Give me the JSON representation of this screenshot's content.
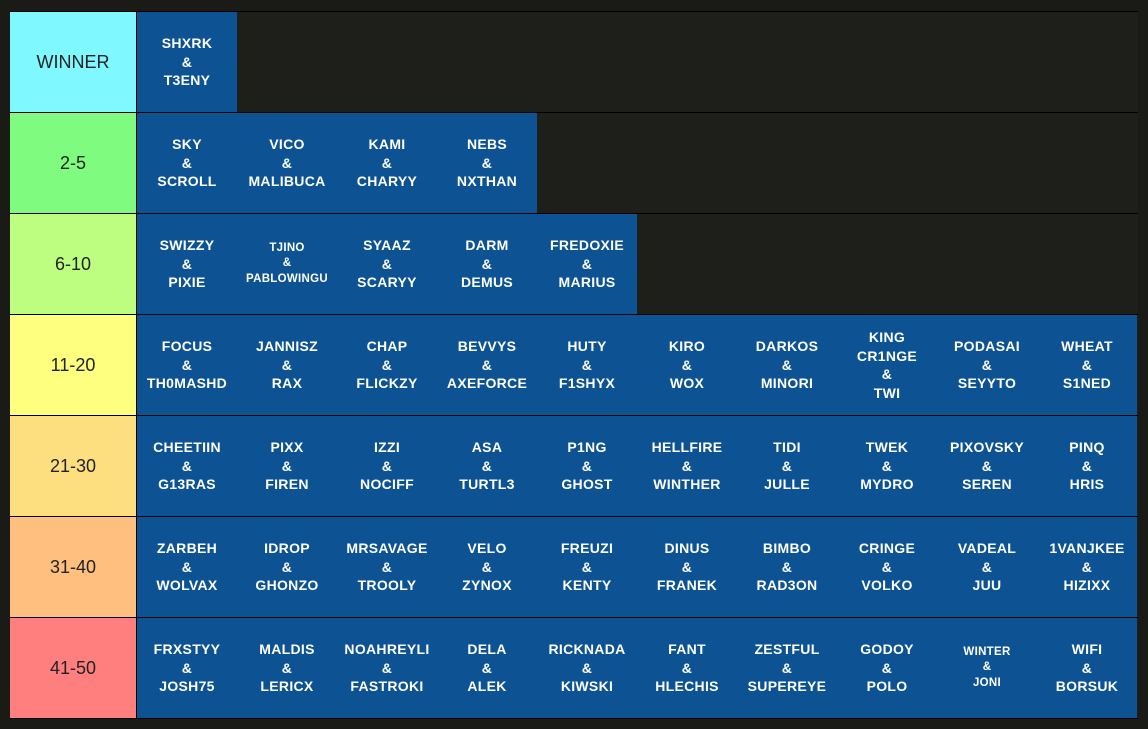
{
  "tiers": [
    {
      "label": "WINNER",
      "color": "#7ff9ff",
      "teams": [
        [
          "SHXRK",
          "&",
          "T3ENY"
        ]
      ]
    },
    {
      "label": "2-5",
      "color": "#7ffc7f",
      "teams": [
        [
          "SKY",
          "&",
          "SCROLL"
        ],
        [
          "VICO",
          "&",
          "MALIBUCA"
        ],
        [
          "KAMI",
          "&",
          "CHARYY"
        ],
        [
          "NEBS",
          "&",
          "NXTHAN"
        ]
      ]
    },
    {
      "label": "6-10",
      "color": "#bdfd7f",
      "teams": [
        [
          "SWIZZY",
          "&",
          "PIXIE"
        ],
        [
          "TJINO",
          "&",
          "PABLOWINGU"
        ],
        [
          "SYAAZ",
          "&",
          "SCARYY"
        ],
        [
          "DARM",
          "&",
          "DEMUS"
        ],
        [
          "FREDOXIE",
          "&",
          "MARIUS"
        ]
      ]
    },
    {
      "label": "11-20",
      "color": "#fefe7f",
      "teams": [
        [
          "FOCUS",
          "&",
          "TH0MASHD"
        ],
        [
          "JANNISZ",
          "&",
          "RAX"
        ],
        [
          "CHAP",
          "&",
          "FLICKZY"
        ],
        [
          "BEVVYS",
          "&",
          "AXEFORCE"
        ],
        [
          "HUTY",
          "&",
          "F1SHYX"
        ],
        [
          "KIRO",
          "&",
          "WOX"
        ],
        [
          "DARKOS",
          "&",
          "MINORI"
        ],
        [
          "KING",
          "CR1NGE",
          "&",
          "TWI"
        ],
        [
          "PODASAI",
          "&",
          "SEYYTO"
        ],
        [
          "WHEAT",
          "&",
          "S1NED"
        ]
      ]
    },
    {
      "label": "21-30",
      "color": "#fedf7f",
      "teams": [
        [
          "CHEETIIN",
          "&",
          "G13RAS"
        ],
        [
          "PIXX",
          "&",
          "FIREN"
        ],
        [
          "IZZI",
          "&",
          "NOCIFF"
        ],
        [
          "ASA",
          "&",
          "TURTL3"
        ],
        [
          "P1NG",
          "&",
          "GHOST"
        ],
        [
          "HELLFIRE",
          "&",
          "WINTHER"
        ],
        [
          "TIDI",
          "&",
          "JULLE"
        ],
        [
          "TWEK",
          "&",
          "MYDRO"
        ],
        [
          "PIXOVSKY",
          "&",
          "SEREN"
        ],
        [
          "PINQ",
          "&",
          "HRIS"
        ]
      ]
    },
    {
      "label": "31-40",
      "color": "#febf7f",
      "teams": [
        [
          "ZARBEH",
          "&",
          "WOLVAX"
        ],
        [
          "IDROP",
          "&",
          "GHONZO"
        ],
        [
          "MRSAVAGE",
          "&",
          "TROOLY"
        ],
        [
          "VELO",
          "&",
          "ZYNOX"
        ],
        [
          "FREUZI",
          "&",
          "KENTY"
        ],
        [
          "DINUS",
          "&",
          "FRANEK"
        ],
        [
          "BIMBO",
          "&",
          "RAD3ON"
        ],
        [
          "CRINGE",
          "&",
          "VOLKO"
        ],
        [
          "VADEAL",
          "&",
          "JUU"
        ],
        [
          "1VANJKEE",
          "&",
          "HIZIXX"
        ]
      ]
    },
    {
      "label": "41-50",
      "color": "#ff7f7f",
      "teams": [
        [
          "FRXSTYY",
          "&",
          "JOSH75"
        ],
        [
          "MALDIS",
          "&",
          "LERICX"
        ],
        [
          "NOAHREYLI",
          "&",
          "FASTROKI"
        ],
        [
          "DELA",
          "&",
          "ALEK"
        ],
        [
          "RICKNADA",
          "&",
          "KIWSKI"
        ],
        [
          "FANT",
          "&",
          "HLECHIS"
        ],
        [
          "ZESTFUL",
          "&",
          "SUPEREYE"
        ],
        [
          "GODOY",
          "&",
          "POLO"
        ],
        [
          "WINTER",
          "&",
          "JONI"
        ],
        [
          "WIFI",
          "&",
          "BORSUK"
        ]
      ]
    }
  ]
}
